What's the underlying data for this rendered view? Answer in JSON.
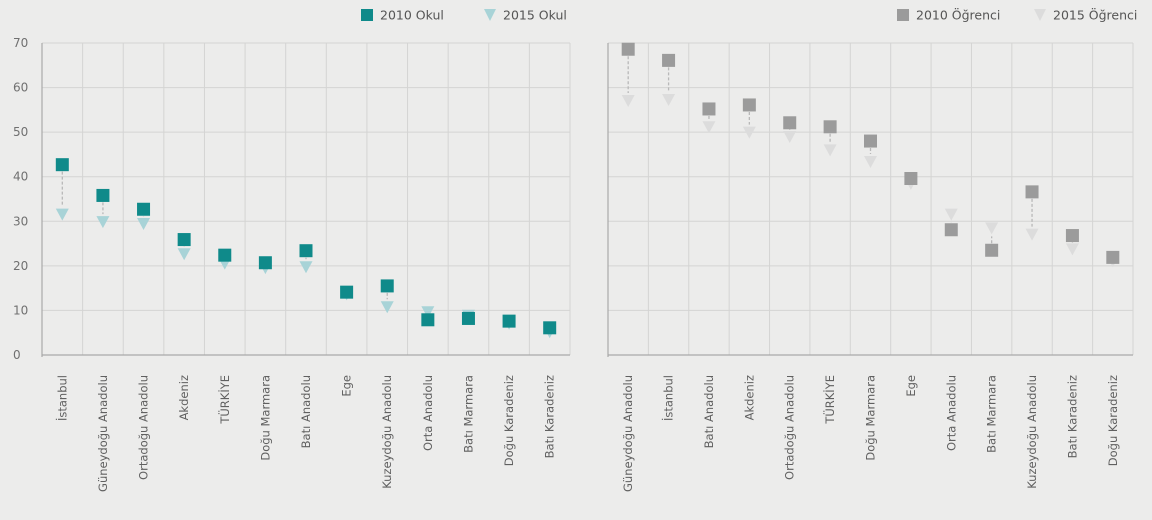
{
  "chart_data": [
    {
      "type": "scatter",
      "title": "",
      "xlabel": "",
      "ylabel": "",
      "ylim": [
        0,
        70
      ],
      "yticks": [
        0,
        10,
        20,
        30,
        40,
        50,
        60,
        70
      ],
      "grid": true,
      "legend_position": "top-right",
      "categories": [
        "İstanbul",
        "Güneydoğu Anadolu",
        "Ortadoğu Anadolu",
        "Akdeniz",
        "TÜRKİYE",
        "Doğu Marmara",
        "Batı Anadolu",
        "Ege",
        "Kuzeydoğu Anadolu",
        "Orta Anadolu",
        "Batı Marmara",
        "Doğu Karadeniz",
        "Batı Karadeniz"
      ],
      "series": [
        {
          "name": "2010 Okul",
          "marker": "square",
          "color": "#0f8a8a",
          "values": [
            42.7,
            35.8,
            32.7,
            25.9,
            22.4,
            20.7,
            23.4,
            14.1,
            15.5,
            7.9,
            8.2,
            7.6,
            6.1
          ]
        },
        {
          "name": "2015 Okul",
          "marker": "triangle-down",
          "color": "#a8d3d7",
          "values": [
            31.5,
            29.8,
            29.4,
            22.6,
            20.5,
            19.5,
            19.7,
            13.6,
            10.7,
            9.6,
            8.8,
            7.0,
            5.1
          ]
        }
      ]
    },
    {
      "type": "scatter",
      "title": "",
      "xlabel": "",
      "ylabel": "",
      "ylim": [
        0,
        70
      ],
      "grid": true,
      "legend_position": "top-right",
      "categories": [
        "Güneydoğu Anadolu",
        "İstanbul",
        "Batı Anadolu",
        "Akdeniz",
        "Ortadoğu Anadolu",
        "TÜRKİYE",
        "Doğu Marmara",
        "Ege",
        "Orta Anadolu",
        "Batı Marmara",
        "Kuzeydoğu Anadolu",
        "Batı Karadeniz",
        "Doğu Karadeniz"
      ],
      "series": [
        {
          "name": "2010 Öğrenci",
          "marker": "square",
          "color": "#9b9b9b",
          "values": [
            68.6,
            66.1,
            55.2,
            56.1,
            52.1,
            51.2,
            48.0,
            39.6,
            28.1,
            23.5,
            36.6,
            26.8,
            21.9
          ]
        },
        {
          "name": "2015 Öğrenci",
          "marker": "triangle-down",
          "color": "#dcdcdc",
          "values": [
            57.0,
            57.2,
            51.1,
            49.9,
            48.9,
            45.9,
            43.3,
            38.4,
            31.5,
            28.4,
            27.0,
            23.7,
            21.0
          ]
        }
      ]
    }
  ]
}
